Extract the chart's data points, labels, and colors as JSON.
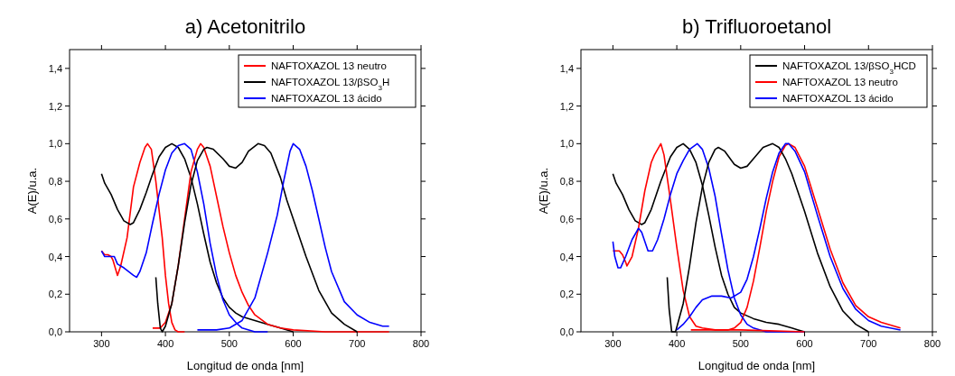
{
  "chart_data": [
    {
      "type": "line",
      "title": "a)  Acetonitrilo",
      "xlabel": "Longitud de onda [nm]",
      "ylabel": "A(E)/u.a.",
      "xlim": [
        250,
        800
      ],
      "ylim": [
        0,
        1.5
      ],
      "xticks": [
        300,
        400,
        500,
        600,
        700,
        800
      ],
      "yticks": [
        {
          "value": 0,
          "label": "0,0"
        },
        {
          "value": 0.2,
          "label": "0,2"
        },
        {
          "value": 0.4,
          "label": "0,4"
        },
        {
          "value": 0.6,
          "label": "0,6"
        },
        {
          "value": 0.8,
          "label": "0,8"
        },
        {
          "value": 1,
          "label": "1,0"
        },
        {
          "value": 1.2,
          "label": "1,2"
        },
        {
          "value": 1.4,
          "label": "1,4"
        }
      ],
      "grid": false,
      "legend": "top right",
      "marker": "none",
      "line_style": "solid",
      "series": [
        {
          "name": "NAFTOXAZOL 13 neutro",
          "color": "#ff0000",
          "x": [
            300,
            305,
            310,
            315,
            318,
            325,
            330,
            340,
            350,
            360,
            368,
            372,
            378,
            385,
            395,
            400,
            405,
            410,
            415,
            420,
            430
          ],
          "values": [
            0.43,
            0.41,
            0.41,
            0.4,
            0.38,
            0.3,
            0.35,
            0.5,
            0.77,
            0.9,
            0.98,
            1.0,
            0.97,
            0.8,
            0.5,
            0.3,
            0.15,
            0.05,
            0.01,
            0,
            0
          ]
        },
        {
          "name": "NAFTOXAZOL 13/βSO$_{3}$H",
          "color": "#000000",
          "x": [
            300,
            305,
            315,
            325,
            335,
            345,
            350,
            360,
            370,
            380,
            390,
            400,
            410,
            420,
            430,
            440,
            450,
            460,
            470,
            480,
            490,
            500,
            510,
            520,
            540,
            560,
            580,
            600
          ],
          "values": [
            0.84,
            0.79,
            0.73,
            0.65,
            0.59,
            0.57,
            0.58,
            0.65,
            0.74,
            0.84,
            0.93,
            0.98,
            1.0,
            0.98,
            0.92,
            0.82,
            0.68,
            0.52,
            0.37,
            0.26,
            0.18,
            0.13,
            0.1,
            0.08,
            0.06,
            0.04,
            0.02,
            0
          ]
        },
        {
          "name": "NAFTOXAZOL 13 ácido",
          "color": "#0000ff",
          "x": [
            300,
            305,
            310,
            320,
            325,
            335,
            350,
            355,
            360,
            370,
            380,
            390,
            400,
            410,
            420,
            430,
            440,
            450,
            460,
            470,
            480,
            490,
            500,
            510,
            520,
            540,
            560
          ],
          "values": [
            0.43,
            0.4,
            0.4,
            0.4,
            0.36,
            0.34,
            0.3,
            0.29,
            0.32,
            0.42,
            0.58,
            0.73,
            0.86,
            0.95,
            0.99,
            1.0,
            0.97,
            0.85,
            0.68,
            0.47,
            0.3,
            0.17,
            0.09,
            0.05,
            0.02,
            0,
            0
          ]
        },
        {
          "color": "#ff0000",
          "x": [
            380,
            392,
            400,
            410,
            420,
            430,
            440,
            450,
            455,
            460,
            470,
            480,
            490,
            500,
            510,
            520,
            530,
            540,
            560,
            580,
            600,
            650,
            750
          ],
          "values": [
            0.02,
            0.02,
            0.05,
            0.15,
            0.35,
            0.6,
            0.85,
            0.97,
            1.0,
            0.98,
            0.88,
            0.72,
            0.56,
            0.42,
            0.3,
            0.21,
            0.14,
            0.09,
            0.04,
            0.02,
            0.01,
            0,
            0
          ]
        },
        {
          "color": "#000000",
          "x": [
            385,
            388,
            392,
            395,
            400,
            410,
            420,
            430,
            440,
            450,
            460,
            465,
            475,
            490,
            500,
            510,
            520,
            530,
            545,
            555,
            565,
            580,
            590,
            600,
            620,
            640,
            660,
            680,
            700
          ],
          "values": [
            0.29,
            0.15,
            0.02,
            0,
            0.03,
            0.15,
            0.35,
            0.58,
            0.78,
            0.91,
            0.97,
            0.98,
            0.97,
            0.92,
            0.88,
            0.87,
            0.9,
            0.96,
            1.0,
            0.99,
            0.95,
            0.82,
            0.7,
            0.6,
            0.4,
            0.22,
            0.1,
            0.04,
            0
          ]
        },
        {
          "color": "#0000ff",
          "x": [
            450,
            480,
            500,
            520,
            540,
            560,
            575,
            585,
            595,
            600,
            610,
            620,
            630,
            640,
            650,
            660,
            680,
            700,
            720,
            740,
            750
          ],
          "values": [
            0.01,
            0.01,
            0.02,
            0.06,
            0.18,
            0.42,
            0.62,
            0.8,
            0.96,
            1.0,
            0.97,
            0.88,
            0.75,
            0.6,
            0.45,
            0.32,
            0.16,
            0.09,
            0.05,
            0.03,
            0.03
          ]
        }
      ]
    },
    {
      "type": "line",
      "title": "b)  Trifluoroetanol",
      "xlabel": "Longitud de onda [nm]",
      "ylabel": "A(E)/u.a.",
      "xlim": [
        250,
        800
      ],
      "ylim": [
        0,
        1.5
      ],
      "xticks": [
        300,
        400,
        500,
        600,
        700,
        800
      ],
      "yticks": [
        {
          "value": 0,
          "label": "0,0"
        },
        {
          "value": 0.2,
          "label": "0,2"
        },
        {
          "value": 0.4,
          "label": "0,4"
        },
        {
          "value": 0.6,
          "label": "0,6"
        },
        {
          "value": 0.8,
          "label": "0,8"
        },
        {
          "value": 1,
          "label": "1,0"
        },
        {
          "value": 1.2,
          "label": "1,2"
        },
        {
          "value": 1.4,
          "label": "1,4"
        }
      ],
      "grid": false,
      "legend": "top right",
      "marker": "none",
      "line_style": "solid",
      "series": [
        {
          "name": "NAFTOXAZOL 13/βSO$_{3}$HCD",
          "color": "#000000",
          "x": [
            300,
            305,
            315,
            325,
            335,
            345,
            350,
            360,
            375,
            390,
            400,
            410,
            420,
            430,
            440,
            450,
            460,
            470,
            480,
            490,
            500,
            520,
            540,
            560,
            580,
            590,
            600
          ],
          "values": [
            0.84,
            0.79,
            0.73,
            0.65,
            0.59,
            0.57,
            0.58,
            0.65,
            0.8,
            0.93,
            0.98,
            1.0,
            0.97,
            0.9,
            0.78,
            0.62,
            0.45,
            0.3,
            0.2,
            0.13,
            0.1,
            0.07,
            0.05,
            0.04,
            0.02,
            0.01,
            0
          ]
        },
        {
          "name": "NAFTOXAZOL 13 neutro",
          "color": "#ff0000",
          "x": [
            300,
            305,
            310,
            315,
            320,
            322,
            330,
            340,
            350,
            360,
            365,
            370,
            375,
            380,
            390,
            400,
            410,
            420,
            430,
            440,
            460,
            480,
            490,
            500,
            510,
            520,
            530,
            540,
            550,
            560,
            570,
            575,
            585,
            600,
            620,
            640,
            660,
            680,
            700,
            720,
            750
          ],
          "values": [
            0.43,
            0.43,
            0.43,
            0.41,
            0.37,
            0.35,
            0.4,
            0.55,
            0.75,
            0.9,
            0.94,
            0.97,
            1.0,
            0.94,
            0.7,
            0.45,
            0.22,
            0.08,
            0.03,
            0.02,
            0.01,
            0.01,
            0.02,
            0.05,
            0.13,
            0.27,
            0.45,
            0.64,
            0.8,
            0.93,
            0.99,
            1.0,
            0.98,
            0.88,
            0.66,
            0.44,
            0.26,
            0.14,
            0.08,
            0.05,
            0.02
          ]
        },
        {
          "name": "NAFTOXAZOL 13 ácido",
          "color": "#0000ff",
          "x": [
            300,
            303,
            308,
            312,
            320,
            330,
            340,
            345,
            355,
            362,
            370,
            380,
            390,
            400,
            410,
            420,
            432,
            440,
            450,
            460,
            470,
            480,
            490,
            500,
            510,
            520,
            540,
            600
          ],
          "values": [
            0.48,
            0.4,
            0.34,
            0.34,
            0.4,
            0.49,
            0.55,
            0.53,
            0.43,
            0.43,
            0.49,
            0.6,
            0.73,
            0.84,
            0.91,
            0.97,
            1.0,
            0.97,
            0.87,
            0.72,
            0.52,
            0.33,
            0.18,
            0.09,
            0.04,
            0.02,
            0,
            0
          ]
        },
        {
          "color": "#000000",
          "x": [
            385,
            388,
            392,
            398,
            410,
            420,
            430,
            440,
            450,
            460,
            465,
            475,
            490,
            500,
            510,
            520,
            535,
            550,
            560,
            570,
            580,
            600,
            620,
            640,
            660,
            680,
            700
          ],
          "values": [
            0.29,
            0.12,
            0,
            0,
            0.15,
            0.35,
            0.58,
            0.77,
            0.9,
            0.97,
            0.98,
            0.96,
            0.89,
            0.87,
            0.88,
            0.92,
            0.98,
            1.0,
            0.98,
            0.92,
            0.84,
            0.64,
            0.42,
            0.24,
            0.11,
            0.04,
            0
          ]
        },
        {
          "color": "#ff0000",
          "x": [
            422,
            500,
            600
          ],
          "values": [
            0.01,
            0.01,
            0
          ]
        },
        {
          "color": "#0000ff",
          "x": [
            400,
            410,
            420,
            430,
            440,
            455,
            470,
            485,
            500,
            510,
            520,
            530,
            540,
            550,
            560,
            570,
            575,
            585,
            600,
            620,
            640,
            660,
            680,
            700,
            720,
            750
          ],
          "values": [
            0.01,
            0.04,
            0.08,
            0.13,
            0.17,
            0.19,
            0.19,
            0.18,
            0.21,
            0.28,
            0.4,
            0.55,
            0.71,
            0.85,
            0.95,
            1.0,
            1.0,
            0.96,
            0.85,
            0.62,
            0.4,
            0.23,
            0.12,
            0.06,
            0.03,
            0.01
          ]
        }
      ]
    }
  ]
}
